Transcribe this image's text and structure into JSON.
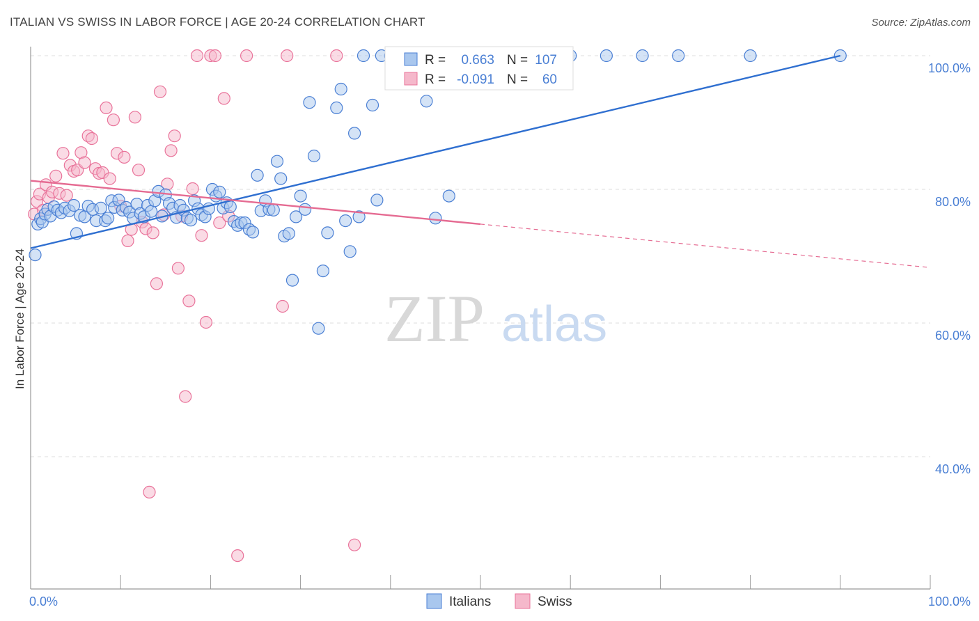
{
  "title": "ITALIAN VS SWISS IN LABOR FORCE | AGE 20-24 CORRELATION CHART",
  "source": "Source: ZipAtlas.com",
  "watermark": {
    "zip": "ZIP",
    "atlas": "atlas"
  },
  "colors": {
    "blue": "#4a7fd4",
    "blue_fill": "#a9c7ee",
    "blue_line": "#2f6fd0",
    "pink": "#e9739a",
    "pink_fill": "#f5b8cb",
    "pink_line": "#e56b92",
    "grid": "#dcdcdc"
  },
  "chart_data": {
    "type": "scatter",
    "title": "ITALIAN VS SWISS IN LABOR FORCE | AGE 20-24 CORRELATION CHART",
    "xlabel": "",
    "ylabel": "In Labor Force | Age 20-24",
    "xlim": [
      0,
      100
    ],
    "ylim": [
      20,
      103
    ],
    "x_tick_labels": [
      "0.0%",
      "100.0%"
    ],
    "y_ticks": [
      40,
      60,
      80,
      100
    ],
    "y_tick_labels": [
      "40.0%",
      "60.0%",
      "80.0%",
      "100.0%"
    ],
    "grid": true,
    "legend_position": "top-center",
    "series": [
      {
        "name": "Italians",
        "R": "0.663",
        "N": "107",
        "color": "#4a7fd4",
        "trend": {
          "x": [
            0,
            90
          ],
          "y": [
            71.2,
            100.0
          ],
          "solid_to": 90
        },
        "points": [
          [
            0.5,
            70.2
          ],
          [
            0.8,
            74.8
          ],
          [
            1.1,
            75.6
          ],
          [
            1.3,
            75.1
          ],
          [
            1.6,
            76.3
          ],
          [
            1.9,
            77.0
          ],
          [
            2.2,
            76.0
          ],
          [
            2.6,
            77.4
          ],
          [
            3.0,
            76.9
          ],
          [
            3.4,
            76.5
          ],
          [
            3.8,
            77.2
          ],
          [
            4.3,
            76.8
          ],
          [
            4.8,
            77.6
          ],
          [
            5.1,
            73.4
          ],
          [
            5.5,
            76.1
          ],
          [
            6.0,
            75.9
          ],
          [
            6.4,
            77.5
          ],
          [
            6.9,
            77.0
          ],
          [
            7.3,
            75.3
          ],
          [
            7.8,
            77.2
          ],
          [
            8.3,
            75.3
          ],
          [
            8.6,
            75.7
          ],
          [
            9.0,
            78.3
          ],
          [
            9.3,
            77.3
          ],
          [
            9.8,
            78.4
          ],
          [
            10.2,
            76.9
          ],
          [
            10.6,
            77.3
          ],
          [
            11.0,
            76.6
          ],
          [
            11.4,
            75.7
          ],
          [
            11.8,
            77.8
          ],
          [
            12.2,
            76.4
          ],
          [
            12.6,
            75.9
          ],
          [
            13.0,
            77.6
          ],
          [
            13.4,
            76.7
          ],
          [
            13.8,
            78.3
          ],
          [
            14.2,
            79.7
          ],
          [
            14.6,
            76.0
          ],
          [
            15.0,
            79.2
          ],
          [
            15.4,
            77.9
          ],
          [
            15.8,
            77.2
          ],
          [
            16.2,
            75.8
          ],
          [
            16.6,
            77.6
          ],
          [
            17.0,
            76.9
          ],
          [
            17.4,
            75.7
          ],
          [
            17.8,
            75.4
          ],
          [
            18.2,
            78.3
          ],
          [
            18.6,
            77.1
          ],
          [
            19.0,
            76.2
          ],
          [
            19.4,
            75.9
          ],
          [
            19.8,
            77.1
          ],
          [
            20.2,
            80.0
          ],
          [
            20.6,
            79.0
          ],
          [
            21.0,
            79.6
          ],
          [
            21.4,
            77.2
          ],
          [
            21.8,
            78.0
          ],
          [
            22.2,
            77.4
          ],
          [
            22.6,
            75.2
          ],
          [
            23.0,
            74.6
          ],
          [
            23.4,
            75.0
          ],
          [
            23.8,
            75.0
          ],
          [
            24.3,
            74.0
          ],
          [
            24.7,
            73.6
          ],
          [
            25.2,
            82.1
          ],
          [
            25.6,
            76.8
          ],
          [
            26.1,
            78.3
          ],
          [
            26.5,
            77.0
          ],
          [
            27.0,
            76.9
          ],
          [
            27.4,
            84.2
          ],
          [
            27.8,
            81.6
          ],
          [
            28.2,
            73.0
          ],
          [
            28.7,
            73.4
          ],
          [
            29.1,
            66.4
          ],
          [
            29.5,
            75.9
          ],
          [
            30.0,
            79.0
          ],
          [
            30.5,
            77.0
          ],
          [
            31.0,
            93.0
          ],
          [
            31.5,
            85.0
          ],
          [
            32.0,
            59.2
          ],
          [
            32.5,
            67.8
          ],
          [
            33.0,
            73.5
          ],
          [
            34.0,
            92.2
          ],
          [
            34.5,
            95.0
          ],
          [
            35.0,
            75.3
          ],
          [
            35.5,
            70.7
          ],
          [
            36.0,
            88.4
          ],
          [
            36.5,
            75.9
          ],
          [
            37.0,
            100.0
          ],
          [
            38.0,
            92.6
          ],
          [
            38.5,
            78.4
          ],
          [
            39.0,
            100.0
          ],
          [
            40.0,
            100.0
          ],
          [
            41.0,
            100.0
          ],
          [
            42.0,
            100.0
          ],
          [
            43.0,
            100.0
          ],
          [
            44.0,
            93.2
          ],
          [
            44.5,
            100.0
          ],
          [
            45.0,
            75.7
          ],
          [
            46.5,
            79.0
          ],
          [
            48.0,
            100.0
          ],
          [
            52.0,
            100.0
          ],
          [
            56.0,
            100.0
          ],
          [
            60.0,
            100.0
          ],
          [
            64.0,
            100.0
          ],
          [
            68.0,
            100.0
          ],
          [
            72.0,
            100.0
          ],
          [
            80.0,
            100.0
          ],
          [
            90.0,
            100.0
          ]
        ]
      },
      {
        "name": "Swiss",
        "R": "-0.091",
        "N": "60",
        "color": "#e9739a",
        "trend": {
          "x": [
            0,
            100
          ],
          "y": [
            81.3,
            68.3
          ],
          "solid_to": 50
        },
        "points": [
          [
            0.4,
            76.3
          ],
          [
            0.7,
            78.2
          ],
          [
            1.0,
            79.3
          ],
          [
            1.4,
            76.9
          ],
          [
            1.7,
            80.7
          ],
          [
            2.0,
            78.8
          ],
          [
            2.4,
            79.6
          ],
          [
            2.8,
            82.0
          ],
          [
            3.2,
            79.4
          ],
          [
            3.6,
            85.4
          ],
          [
            4.0,
            79.1
          ],
          [
            4.4,
            83.6
          ],
          [
            4.8,
            82.7
          ],
          [
            5.2,
            82.9
          ],
          [
            5.6,
            85.5
          ],
          [
            6.0,
            84.0
          ],
          [
            6.4,
            88.0
          ],
          [
            6.8,
            87.6
          ],
          [
            7.2,
            83.1
          ],
          [
            7.6,
            82.4
          ],
          [
            8.0,
            82.5
          ],
          [
            8.4,
            92.2
          ],
          [
            8.8,
            81.6
          ],
          [
            9.2,
            90.4
          ],
          [
            9.6,
            85.4
          ],
          [
            10.0,
            77.5
          ],
          [
            10.4,
            84.8
          ],
          [
            10.8,
            72.3
          ],
          [
            11.2,
            74.0
          ],
          [
            11.6,
            90.8
          ],
          [
            12.0,
            82.9
          ],
          [
            12.4,
            75.1
          ],
          [
            12.8,
            74.1
          ],
          [
            13.2,
            34.7
          ],
          [
            13.6,
            73.5
          ],
          [
            14.0,
            65.9
          ],
          [
            14.4,
            94.6
          ],
          [
            14.8,
            76.2
          ],
          [
            15.2,
            80.8
          ],
          [
            15.6,
            85.8
          ],
          [
            16.0,
            88.0
          ],
          [
            16.4,
            68.2
          ],
          [
            16.8,
            76.0
          ],
          [
            17.2,
            49.0
          ],
          [
            17.6,
            63.3
          ],
          [
            18.0,
            80.1
          ],
          [
            18.5,
            100.0
          ],
          [
            19.0,
            73.1
          ],
          [
            19.5,
            60.1
          ],
          [
            20.0,
            100.0
          ],
          [
            20.5,
            100.0
          ],
          [
            21.0,
            75.0
          ],
          [
            21.5,
            93.6
          ],
          [
            22.0,
            76.0
          ],
          [
            23.0,
            25.2
          ],
          [
            24.0,
            100.0
          ],
          [
            28.0,
            62.5
          ],
          [
            28.5,
            100.0
          ],
          [
            34.0,
            100.0
          ],
          [
            36.0,
            26.8
          ]
        ]
      }
    ]
  },
  "legend_bottom": [
    "Italians",
    "Swiss"
  ]
}
